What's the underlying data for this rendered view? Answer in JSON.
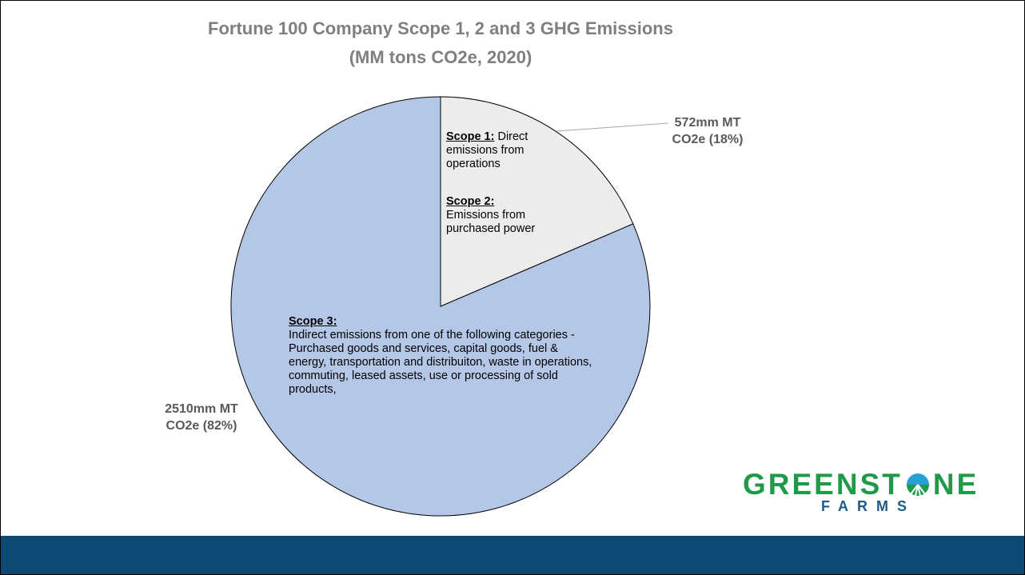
{
  "chart_data": {
    "type": "pie",
    "title": "Fortune 100 Company Scope 1, 2 and 3 GHG Emissions",
    "subtitle": "(MM tons CO2e, 2020)",
    "values": [
      572,
      2510
    ],
    "value_labels": [
      "572mm MT CO2e (18%)",
      "2510mm MT CO2e (82%)"
    ],
    "colors": [
      "#ececec",
      "#b4c7e7"
    ],
    "annotations": [
      {
        "heading": "Scope 1:",
        "text": "Direct emissions from operations"
      },
      {
        "heading": "Scope 2:",
        "text": "Emissions from purchased power"
      },
      {
        "heading": "Scope 3:",
        "text": "Indirect emissions from one of the following categories - Purchased goods and services, capital goods, fuel & energy, transportation and distribuiton, waste in operations, commuting, leased assets, use or processing of sold products,"
      }
    ]
  },
  "logo": {
    "left": "GREENST",
    "right": "NE",
    "sub": "FARMS"
  }
}
